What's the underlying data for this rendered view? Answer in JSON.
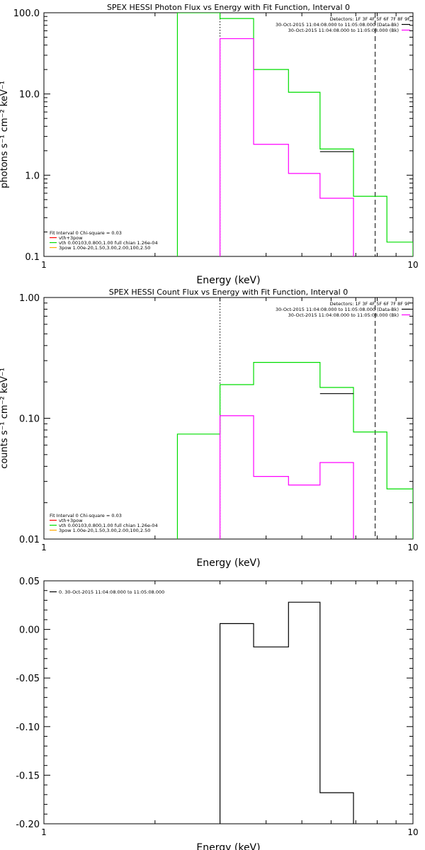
{
  "chart_data": [
    {
      "type": "line",
      "title": "SPEX HESSI Photon Flux vs Energy with Fit Function, Interval 0",
      "xlabel": "Energy (keV)",
      "ylabel": "photons s⁻¹ cm⁻² keV⁻¹",
      "xscale": "log",
      "yscale": "log",
      "xlim": [
        1,
        10
      ],
      "ylim": [
        0.1,
        100
      ],
      "xticks": [
        {
          "value": 1,
          "label": "1"
        },
        {
          "value": 10,
          "label": "10"
        }
      ],
      "yticks": [
        {
          "value": 0.1,
          "label": "0.1"
        },
        {
          "value": 1,
          "label": "1.0"
        },
        {
          "value": 10,
          "label": "10.0"
        },
        {
          "value": 100,
          "label": "100.0"
        }
      ],
      "vlines": [
        {
          "x": 3.0,
          "style": "dotted",
          "color": "#000000"
        },
        {
          "x": 7.9,
          "style": "dashed",
          "color": "#000000"
        }
      ],
      "legend_right": {
        "placement": "top-right",
        "header": "Detectors: 1F 3F 4F 5F 6F 7F 8F 9F",
        "entries": [
          {
            "text": "30-Oct-2015 11:04:08.000 to 11:05:08.000 (Data-Bk)",
            "color": "#000000"
          },
          {
            "text": "30-Oct-2015 11:04:08.000 to 11:05:08.000 (Bk)",
            "color": "#ff00ff"
          }
        ]
      },
      "legend_left": {
        "placement": "bottom-left",
        "header": "Fit Interval 0  Chi-square = 0.03",
        "entries": [
          {
            "text": "vth+3pow",
            "color": "#ff0000"
          },
          {
            "text": "vth 0.00103,0.800,1.00  full chian 1.26e-04",
            "color": "#00dd00"
          },
          {
            "text": "3pow 1.00e-20,1.50,3.00,2.00,100,2.50",
            "color": "#ffaa00"
          }
        ]
      },
      "series": [
        {
          "color": "#00dd00",
          "steps": [
            {
              "x0": 2.3,
              "x1": 3.0,
              "y": 100
            },
            {
              "x0": 3.0,
              "x1": 3.7,
              "y": 85
            },
            {
              "x0": 3.7,
              "x1": 4.6,
              "y": 20
            },
            {
              "x0": 4.6,
              "x1": 5.6,
              "y": 10.5
            },
            {
              "x0": 5.6,
              "x1": 6.9,
              "y": 2.1
            },
            {
              "x0": 6.9,
              "x1": 8.5,
              "y": 0.55
            },
            {
              "x0": 8.5,
              "x1": 10,
              "y": 0.15
            }
          ],
          "drop_start_to": 0.1,
          "drop_end_to": 0.1
        },
        {
          "color": "#000000",
          "steps": [
            {
              "x0": 5.6,
              "x1": 6.9,
              "y": 1.95
            }
          ]
        },
        {
          "color": "#ff00ff",
          "steps": [
            {
              "x0": 3.0,
              "x1": 3.7,
              "y": 48
            },
            {
              "x0": 3.7,
              "x1": 4.6,
              "y": 2.4
            },
            {
              "x0": 4.6,
              "x1": 5.6,
              "y": 1.05
            },
            {
              "x0": 5.6,
              "x1": 6.9,
              "y": 0.52
            }
          ],
          "drop_start_to": 0.1,
          "drop_end_to": 0.1
        }
      ]
    },
    {
      "type": "line",
      "title": "SPEX HESSI Count Flux vs Energy with Fit Function, Interval 0",
      "xlabel": "Energy (keV)",
      "ylabel": "counts s⁻¹ cm⁻² keV⁻¹",
      "xscale": "log",
      "yscale": "log",
      "xlim": [
        1,
        10
      ],
      "ylim": [
        0.01,
        1
      ],
      "xticks": [
        {
          "value": 1,
          "label": "1"
        },
        {
          "value": 10,
          "label": "10"
        }
      ],
      "yticks": [
        {
          "value": 0.01,
          "label": "0.01"
        },
        {
          "value": 0.1,
          "label": "0.10"
        },
        {
          "value": 1,
          "label": "1.00"
        }
      ],
      "vlines": [
        {
          "x": 3.0,
          "style": "dotted",
          "color": "#000000"
        },
        {
          "x": 7.9,
          "style": "dashed",
          "color": "#000000"
        }
      ],
      "legend_right": {
        "placement": "top-right",
        "header": "Detectors: 1F 3F 4F 5F 6F 7F 8F 9F",
        "entries": [
          {
            "text": "30-Oct-2015 11:04:08.000 to 11:05:08.000 (Data-Bk)",
            "color": "#000000"
          },
          {
            "text": "30-Oct-2015 11:04:08.000 to 11:05:08.000 (Bk)",
            "color": "#ff00ff"
          }
        ]
      },
      "legend_left": {
        "placement": "bottom-left",
        "header": "Fit Interval 0  Chi-square = 0.03",
        "entries": [
          {
            "text": "vth+3pow",
            "color": "#ff0000"
          },
          {
            "text": "vth 0.00103,0.800,1.00  full chian 1.26e-04",
            "color": "#00dd00"
          },
          {
            "text": "3pow 1.00e-20,1.50,3.00,2.00,100,2.50",
            "color": "#ffaa00"
          }
        ]
      },
      "series": [
        {
          "color": "#00dd00",
          "steps": [
            {
              "x0": 2.3,
              "x1": 3.0,
              "y": 0.074
            },
            {
              "x0": 3.0,
              "x1": 3.7,
              "y": 0.19
            },
            {
              "x0": 3.7,
              "x1": 5.6,
              "y": 0.29
            },
            {
              "x0": 5.6,
              "x1": 6.9,
              "y": 0.18
            },
            {
              "x0": 6.9,
              "x1": 8.5,
              "y": 0.077
            },
            {
              "x0": 8.5,
              "x1": 10,
              "y": 0.026
            }
          ],
          "drop_start_to": 0.01,
          "drop_end_to": 0.01
        },
        {
          "color": "#000000",
          "steps": [
            {
              "x0": 5.6,
              "x1": 6.9,
              "y": 0.16
            }
          ]
        },
        {
          "color": "#ff00ff",
          "steps": [
            {
              "x0": 3.0,
              "x1": 3.7,
              "y": 0.105
            },
            {
              "x0": 3.7,
              "x1": 4.6,
              "y": 0.033
            },
            {
              "x0": 4.6,
              "x1": 5.6,
              "y": 0.028
            },
            {
              "x0": 5.6,
              "x1": 6.9,
              "y": 0.043
            }
          ],
          "drop_start_to": 0.01,
          "drop_end_to": 0.01
        }
      ]
    },
    {
      "type": "line",
      "title": "",
      "xlabel": "Energy (keV)",
      "ylabel": "",
      "xscale": "log",
      "yscale": "linear",
      "xlim": [
        1,
        10
      ],
      "ylim": [
        -0.2,
        0.05
      ],
      "xticks": [
        {
          "value": 1,
          "label": "1"
        },
        {
          "value": 10,
          "label": "10"
        }
      ],
      "yticks": [
        {
          "value": 0.05,
          "label": "0.05"
        },
        {
          "value": 0,
          "label": "0.00"
        },
        {
          "value": -0.05,
          "label": "-0.05"
        },
        {
          "value": -0.1,
          "label": "-0.10"
        },
        {
          "value": -0.15,
          "label": "-0.15"
        },
        {
          "value": -0.2,
          "label": "-0.20"
        }
      ],
      "vlines": [],
      "legend_left": {
        "placement": "top-left",
        "header": "",
        "entries": [
          {
            "text": "0. 30-Oct-2015 11:04:08.000 to 11:05:08.000",
            "color": "#000000"
          }
        ]
      },
      "series": [
        {
          "color": "#000000",
          "steps": [
            {
              "x0": 3.0,
              "x1": 3.7,
              "y": 0.006
            },
            {
              "x0": 3.7,
              "x1": 4.6,
              "y": -0.018
            },
            {
              "x0": 4.6,
              "x1": 5.6,
              "y": 0.028
            },
            {
              "x0": 5.6,
              "x1": 6.9,
              "y": -0.168
            }
          ],
          "drop_start_to": -0.2,
          "drop_end_to": -0.2
        }
      ]
    }
  ]
}
